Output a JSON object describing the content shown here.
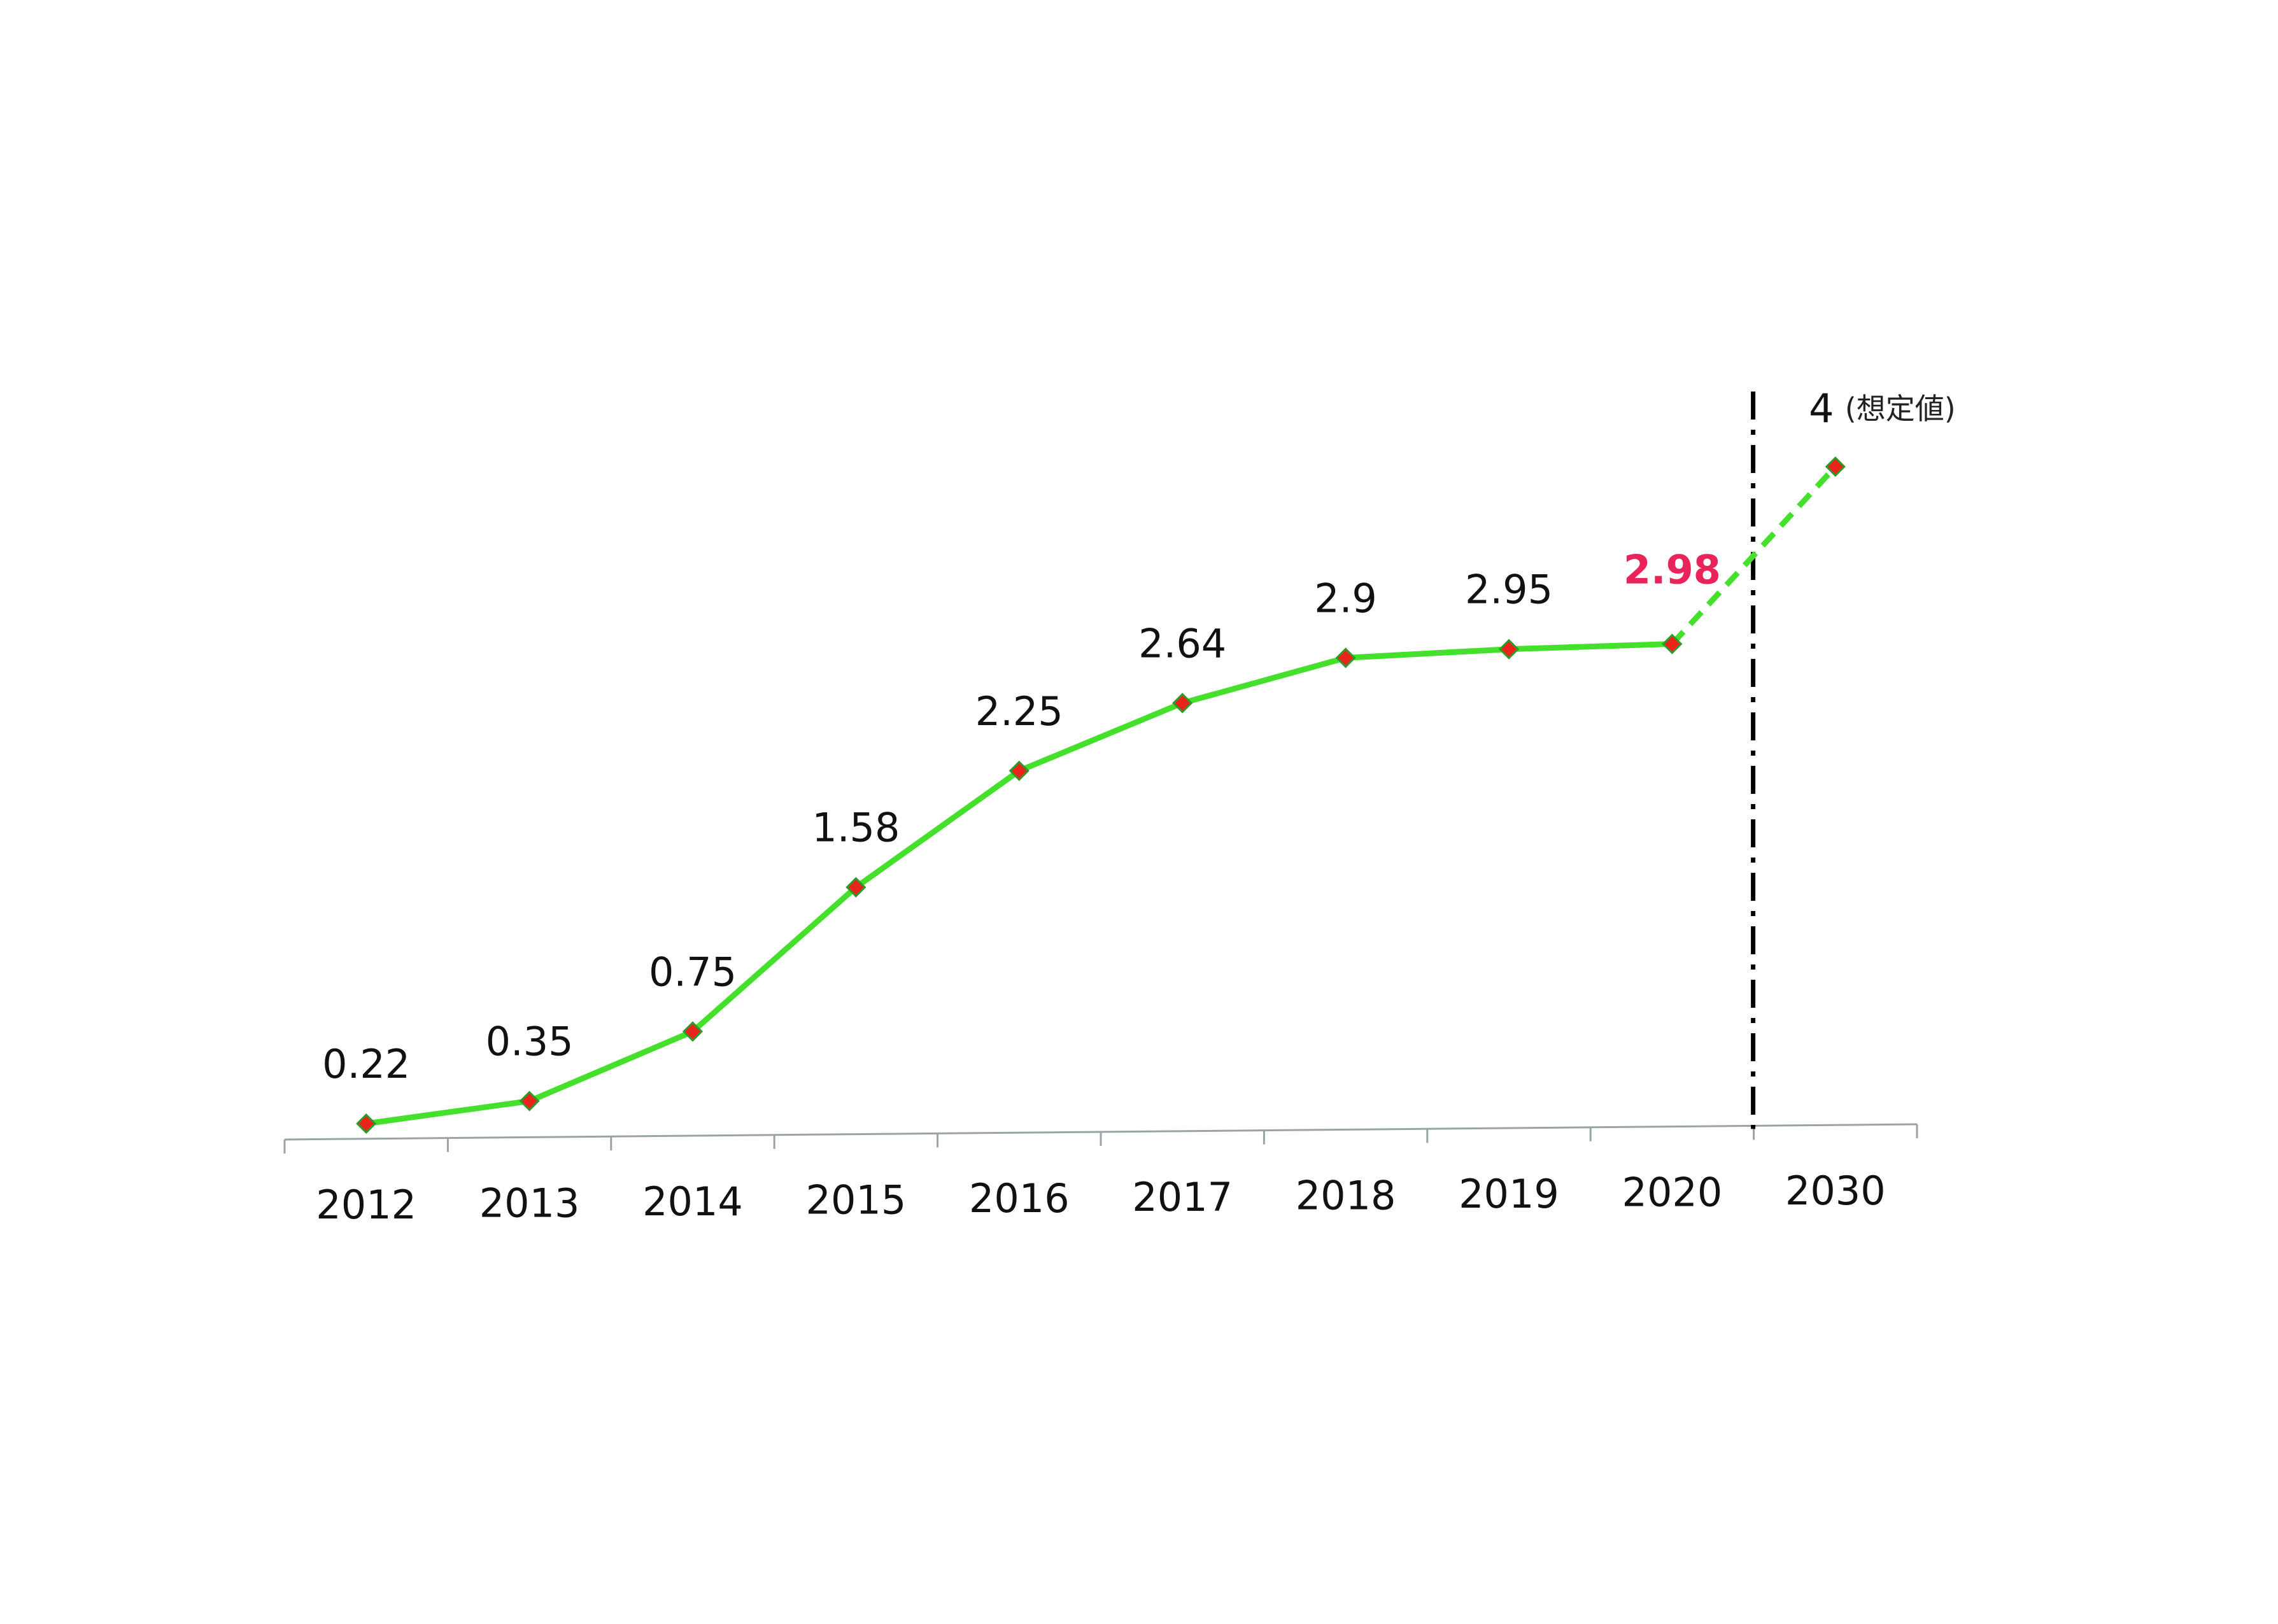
{
  "chart_data": {
    "type": "line",
    "categories": [
      "2012",
      "2013",
      "2014",
      "2015",
      "2016",
      "2017",
      "2018",
      "2019",
      "2020",
      "2030"
    ],
    "values": [
      0.22,
      0.35,
      0.75,
      1.58,
      2.25,
      2.64,
      2.9,
      2.95,
      2.98,
      4
    ],
    "data_labels": [
      "0.22",
      "0.35",
      "0.75",
      "1.58",
      "2.25",
      "2.64",
      "2.9",
      "2.95",
      "2.98",
      "4"
    ],
    "highlight_index": 8,
    "projected_from_index": 8,
    "projection_note": "(想定値)",
    "divider_after_category": "2020",
    "title": "",
    "xlabel": "",
    "ylabel": "",
    "grid": false,
    "legend": "none",
    "colors": {
      "line": "#44e02c",
      "marker_fill": "#e8241b",
      "marker_stroke": "#2e9a2a",
      "highlight_label": "#e8245a",
      "axis": "#9aa3a8",
      "divider": "#000000"
    }
  }
}
